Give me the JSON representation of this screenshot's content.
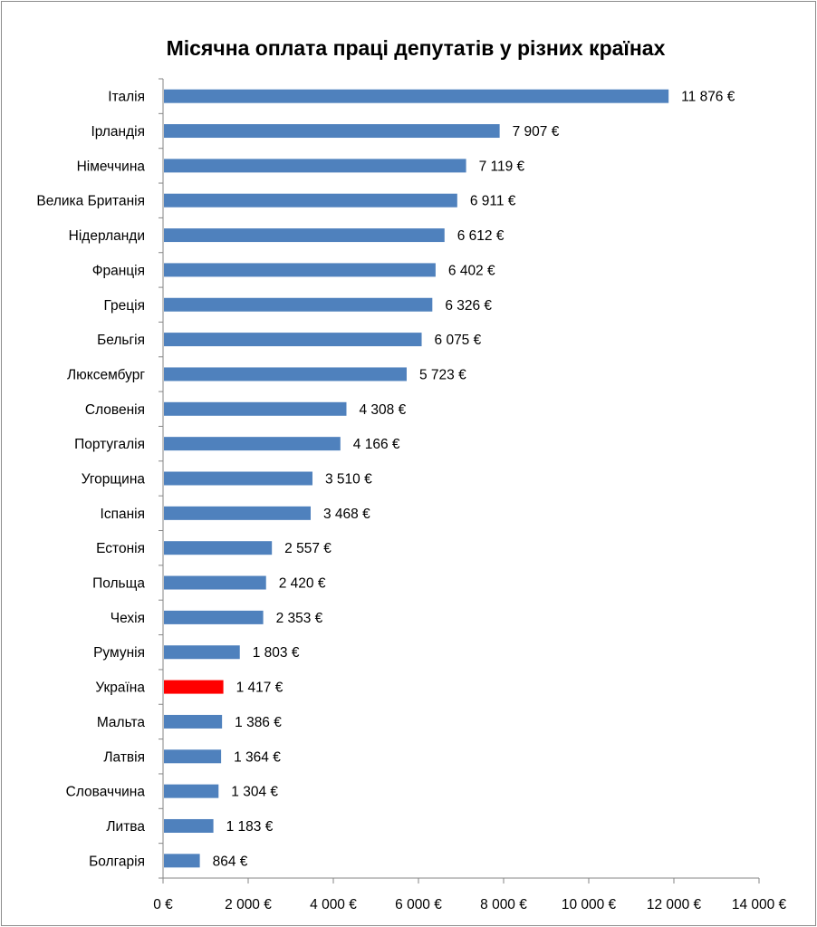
{
  "chart_data": {
    "type": "bar",
    "orientation": "horizontal",
    "title": "Місячна оплата праці депутатів у різних країнах",
    "xlabel": "",
    "ylabel": "",
    "xlim": [
      0,
      14000
    ],
    "x_ticks": [
      0,
      2000,
      4000,
      6000,
      8000,
      10000,
      12000,
      14000
    ],
    "x_tick_labels": [
      "0 €",
      "2 000 €",
      "4 000 €",
      "6 000 €",
      "8 000 €",
      "10 000 €",
      "12 000 €",
      "14 000 €"
    ],
    "grid": false,
    "legend": "none",
    "bar_color": "#4f81bd",
    "highlight_color": "#ff0000",
    "highlight_category": "Україна",
    "categories": [
      "Італія",
      "Ірландія",
      "Німеччина",
      "Велика Британія",
      "Нідерланди",
      "Франція",
      "Греція",
      "Бельгія",
      "Люксембург",
      "Словенія",
      "Португалія",
      "Угорщина",
      "Іспанія",
      "Естонія",
      "Польща",
      "Чехія",
      "Румунія",
      "Україна",
      "Мальта",
      "Латвія",
      "Словаччина",
      "Литва",
      "Болгарія"
    ],
    "values": [
      11876,
      7907,
      7119,
      6911,
      6612,
      6402,
      6326,
      6075,
      5723,
      4308,
      4166,
      3510,
      3468,
      2557,
      2420,
      2353,
      1803,
      1417,
      1386,
      1364,
      1304,
      1183,
      864
    ],
    "value_labels": [
      "11 876 €",
      "7 907 €",
      "7 119 €",
      "6 911 €",
      "6 612 €",
      "6 402 €",
      "6 326 €",
      "6 075 €",
      "5 723 €",
      "4 308 €",
      "4 166 €",
      "3 510 €",
      "3 468 €",
      "2 557 €",
      "2 420 €",
      "2 353 €",
      "1 803 €",
      "1 417 €",
      "1 386 €",
      "1 364 €",
      "1 304 €",
      "1 183 €",
      "864 €"
    ]
  }
}
